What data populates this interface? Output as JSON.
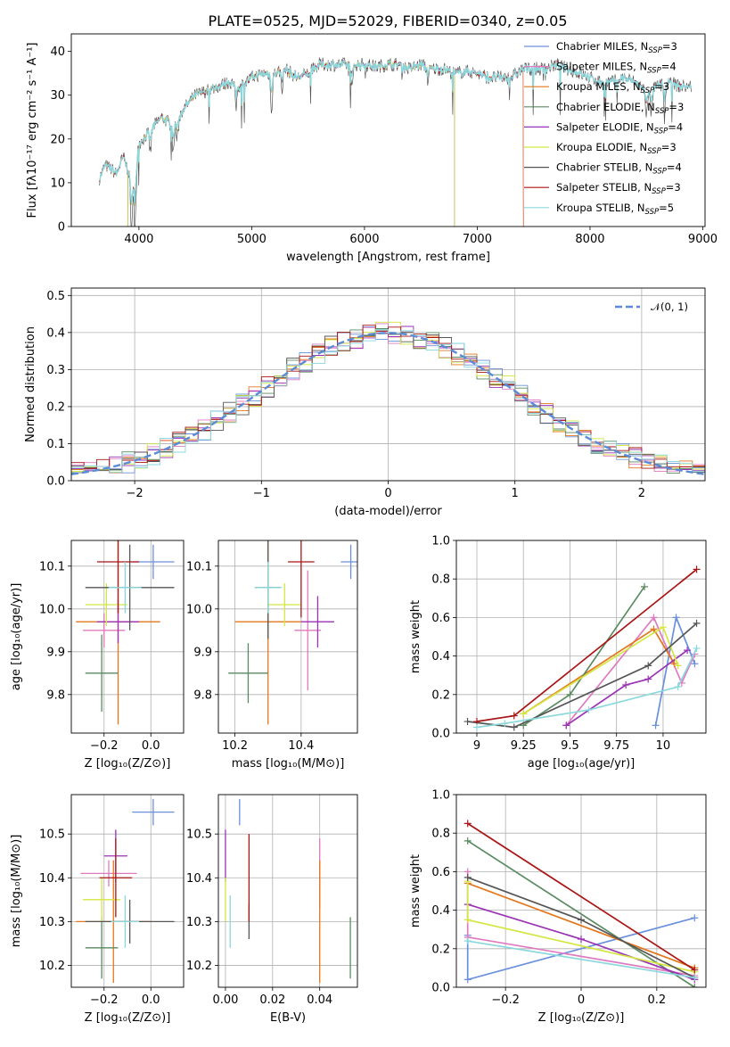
{
  "title": "PLATE=0525, MJD=52029, FIBERID=0340, z=0.05",
  "colors": {
    "Chabrier MILES": "#6a8fdc",
    "Salpeter MILES": "#e07ac0",
    "Kroupa MILES": "#e3771e",
    "Chabrier ELODIE": "#5a8a60",
    "Salpeter ELODIE": "#9a32b4",
    "Kroupa ELODIE": "#d4e640",
    "Chabrier STELIB": "#555555",
    "Salpeter STELIB": "#aa1515",
    "Kroupa STELIB": "#8ad8dc"
  },
  "legend": [
    {
      "name": "Chabrier MILES",
      "label": "Chabrier MILES, N",
      "sub": "SSP",
      "n": "=3"
    },
    {
      "name": "Salpeter MILES",
      "label": "Salpeter MILES, N",
      "sub": "SSP",
      "n": "=4"
    },
    {
      "name": "Kroupa MILES",
      "label": "Kroupa MILES, N",
      "sub": "SSP",
      "n": "=3"
    },
    {
      "name": "Chabrier ELODIE",
      "label": "Chabrier ELODIE, N",
      "sub": "SSP",
      "n": "=3"
    },
    {
      "name": "Salpeter ELODIE",
      "label": "Salpeter ELODIE, N",
      "sub": "SSP",
      "n": "=4"
    },
    {
      "name": "Kroupa ELODIE",
      "label": "Kroupa ELODIE, N",
      "sub": "SSP",
      "n": "=3"
    },
    {
      "name": "Chabrier STELIB",
      "label": "Chabrier STELIB, N",
      "sub": "SSP",
      "n": "=4"
    },
    {
      "name": "Salpeter STELIB",
      "label": "Salpeter STELIB, N",
      "sub": "SSP",
      "n": "=3"
    },
    {
      "name": "Kroupa STELIB",
      "label": "Kroupa STELIB, N",
      "sub": "SSP",
      "n": "=5"
    }
  ],
  "chart_data": [
    {
      "id": "spectrum",
      "type": "line",
      "xlabel": "wavelength [Angstrom, rest frame]",
      "ylabel": "Flux [fλ10⁻¹⁷ erg cm⁻² s⁻¹ A⁻¹]",
      "xlim": [
        3400,
        9020
      ],
      "ylim": [
        0,
        44
      ],
      "xticks": [
        4000,
        5000,
        6000,
        7000,
        8000,
        9000
      ],
      "yticks": [
        0,
        10,
        20,
        30,
        40
      ],
      "anchors": [
        [
          3650,
          11
        ],
        [
          3700,
          14
        ],
        [
          3760,
          13
        ],
        [
          3800,
          12
        ],
        [
          3860,
          16
        ],
        [
          3900,
          13
        ],
        [
          3950,
          10
        ],
        [
          4000,
          19
        ],
        [
          4100,
          22
        ],
        [
          4200,
          25
        ],
        [
          4300,
          23
        ],
        [
          4400,
          27
        ],
        [
          4500,
          30
        ],
        [
          4600,
          31
        ],
        [
          4700,
          32
        ],
        [
          4800,
          33
        ],
        [
          4900,
          32
        ],
        [
          5000,
          34
        ],
        [
          5100,
          35
        ],
        [
          5200,
          35
        ],
        [
          5300,
          36
        ],
        [
          5400,
          34
        ],
        [
          5500,
          35
        ],
        [
          5600,
          37
        ],
        [
          5700,
          37
        ],
        [
          5800,
          37
        ],
        [
          5900,
          37
        ],
        [
          6000,
          37
        ],
        [
          6100,
          36.5
        ],
        [
          6200,
          37
        ],
        [
          6300,
          37
        ],
        [
          6400,
          36
        ],
        [
          6500,
          37
        ],
        [
          6600,
          36
        ],
        [
          6700,
          36
        ],
        [
          6800,
          35
        ],
        [
          6900,
          35.5
        ],
        [
          7000,
          35
        ],
        [
          7100,
          34
        ],
        [
          7200,
          34
        ],
        [
          7300,
          34
        ],
        [
          7400,
          36
        ],
        [
          7500,
          36
        ],
        [
          7600,
          36
        ],
        [
          7700,
          37
        ],
        [
          7800,
          36
        ],
        [
          7900,
          35
        ],
        [
          8000,
          34
        ],
        [
          8100,
          33
        ],
        [
          8200,
          33
        ],
        [
          8300,
          34
        ],
        [
          8400,
          33
        ],
        [
          8500,
          31
        ],
        [
          8600,
          32
        ],
        [
          8700,
          33
        ],
        [
          8800,
          32
        ],
        [
          8900,
          32
        ]
      ]
    },
    {
      "id": "residuals",
      "type": "bar",
      "xlabel": "(data-model)/error",
      "ylabel": "Normed distribution",
      "xlim": [
        -2.5,
        2.5
      ],
      "ylim": [
        0,
        0.52
      ],
      "xticks": [
        -2,
        -1,
        0,
        1,
        2
      ],
      "yticks": [
        0.0,
        0.1,
        0.2,
        0.3,
        0.4,
        0.5
      ],
      "bin_width": 0.1,
      "legend_label": "𝒩(0, 1)",
      "grid": true
    },
    {
      "id": "age-vs-Z",
      "type": "scatter",
      "xlabel": "Z [log₁₀(Z/Z⊙)]",
      "ylabel": "age  [log₁₀(age/yr)]",
      "xlim": [
        -0.34,
        0.14
      ],
      "ylim": [
        9.71,
        10.16
      ],
      "xticks": [
        -0.2,
        0.0
      ],
      "yticks": [
        9.8,
        9.9,
        10.0,
        10.1
      ],
      "points": [
        {
          "name": "Chabrier MILES",
          "x": 0.01,
          "xerr": 0.09,
          "y": 10.11,
          "yerr": 0.04
        },
        {
          "name": "Salpeter MILES",
          "x": -0.2,
          "xerr": 0.09,
          "y": 9.95,
          "yerr": 0.04
        },
        {
          "name": "Kroupa MILES",
          "x": -0.14,
          "xerr": 0.18,
          "y": 9.97,
          "yerr": 0.24
        },
        {
          "name": "Chabrier ELODIE",
          "x": -0.21,
          "xerr": 0.07,
          "y": 9.85,
          "yerr": 0.09
        },
        {
          "name": "Salpeter ELODIE",
          "x": -0.14,
          "xerr": 0.09,
          "y": 9.97,
          "yerr": 0.05
        },
        {
          "name": "Kroupa ELODIE",
          "x": -0.19,
          "xerr": 0.09,
          "y": 10.01,
          "yerr": 0.05
        },
        {
          "name": "Chabrier STELIB",
          "x": -0.09,
          "xerr": 0.19,
          "y": 10.05,
          "yerr": 0.1
        },
        {
          "name": "Salpeter STELIB",
          "x": -0.14,
          "xerr": 0.09,
          "y": 10.11,
          "yerr": 0.12
        },
        {
          "name": "Kroupa STELIB",
          "x": -0.11,
          "xerr": 0.07,
          "y": 10.05,
          "yerr": 0.06
        }
      ]
    },
    {
      "id": "age-vs-mass",
      "type": "scatter",
      "xlabel": "mass [log₁₀(M/M⊙)]",
      "ylabel": "",
      "xlim": [
        10.15,
        10.57
      ],
      "ylim": [
        9.71,
        10.16
      ],
      "xticks": [
        10.2,
        10.4
      ],
      "yticks": [
        9.8,
        9.9,
        10.0,
        10.1
      ],
      "points": [
        {
          "name": "Chabrier MILES",
          "x": 10.55,
          "xerr": 0.03,
          "y": 10.11,
          "yerr": 0.04
        },
        {
          "name": "Salpeter MILES",
          "x": 10.42,
          "xerr": 0.04,
          "y": 9.95,
          "yerr": 0.14
        },
        {
          "name": "Kroupa MILES",
          "x": 10.3,
          "xerr": 0.1,
          "y": 9.97,
          "yerr": 0.24
        },
        {
          "name": "Chabrier ELODIE",
          "x": 10.24,
          "xerr": 0.06,
          "y": 9.85,
          "yerr": 0.07
        },
        {
          "name": "Salpeter ELODIE",
          "x": 10.45,
          "xerr": 0.05,
          "y": 9.97,
          "yerr": 0.06
        },
        {
          "name": "Kroupa ELODIE",
          "x": 10.35,
          "xerr": 0.05,
          "y": 10.01,
          "yerr": 0.05
        },
        {
          "name": "Chabrier STELIB",
          "x": 10.3,
          "xerr": 0.04,
          "y": 10.05,
          "yerr": 0.12
        },
        {
          "name": "Salpeter STELIB",
          "x": 10.4,
          "xerr": 0.04,
          "y": 10.11,
          "yerr": 0.13
        },
        {
          "name": "Kroupa STELIB",
          "x": 10.3,
          "xerr": 0.04,
          "y": 10.05,
          "yerr": 0.06
        }
      ]
    },
    {
      "id": "mass-weight-vs-age",
      "type": "line",
      "xlabel": "age  [log₁₀(age/yr)]",
      "ylabel": "mass weight",
      "xlim": [
        8.89,
        10.23
      ],
      "ylim": [
        0,
        1.0
      ],
      "xticks": [
        9.0,
        9.25,
        9.5,
        9.75,
        10.0
      ],
      "yticks": [
        0.0,
        0.2,
        0.4,
        0.6,
        0.8,
        1.0
      ],
      "series": [
        {
          "name": "Chabrier MILES",
          "points": [
            [
              9.96,
              0.04
            ],
            [
              10.07,
              0.6
            ],
            [
              10.17,
              0.36
            ]
          ]
        },
        {
          "name": "Salpeter MILES",
          "points": [
            [
              9.48,
              0.04
            ],
            [
              9.95,
              0.6
            ],
            [
              10.1,
              0.26
            ],
            [
              10.17,
              0.41
            ]
          ]
        },
        {
          "name": "Kroupa MILES",
          "points": [
            [
              9.25,
              0.1
            ],
            [
              9.95,
              0.54
            ],
            [
              10.06,
              0.36
            ]
          ]
        },
        {
          "name": "Chabrier ELODIE",
          "points": [
            [
              9.25,
              0.04
            ],
            [
              9.5,
              0.2
            ],
            [
              9.9,
              0.76
            ]
          ]
        },
        {
          "name": "Salpeter ELODIE",
          "points": [
            [
              9.48,
              0.04
            ],
            [
              9.8,
              0.25
            ],
            [
              9.92,
              0.28
            ],
            [
              10.13,
              0.43
            ]
          ]
        },
        {
          "name": "Kroupa ELODIE",
          "points": [
            [
              9.25,
              0.1
            ],
            [
              10.0,
              0.55
            ],
            [
              10.08,
              0.35
            ]
          ]
        },
        {
          "name": "Chabrier STELIB",
          "points": [
            [
              8.95,
              0.06
            ],
            [
              9.2,
              0.03
            ],
            [
              9.92,
              0.35
            ],
            [
              10.18,
              0.57
            ]
          ]
        },
        {
          "name": "Salpeter STELIB",
          "points": [
            [
              9.0,
              0.06
            ],
            [
              9.2,
              0.09
            ],
            [
              10.18,
              0.85
            ]
          ]
        },
        {
          "name": "Kroupa STELIB",
          "points": [
            [
              9.0,
              0.03
            ],
            [
              9.15,
              0.05
            ],
            [
              9.6,
              0.12
            ],
            [
              10.08,
              0.24
            ],
            [
              10.18,
              0.44
            ]
          ]
        }
      ]
    },
    {
      "id": "mass-vs-Z",
      "type": "scatter",
      "xlabel": "Z [log₁₀(Z/Z⊙)]",
      "ylabel": "mass [log₁₀(M/M⊙)]",
      "xlim": [
        -0.34,
        0.14
      ],
      "ylim": [
        10.15,
        10.59
      ],
      "xticks": [
        -0.2,
        0.0
      ],
      "yticks": [
        10.2,
        10.3,
        10.4,
        10.5
      ],
      "points": [
        {
          "name": "Chabrier MILES",
          "x": 0.01,
          "xerr": 0.09,
          "y": 10.55,
          "yerr": 0.03
        },
        {
          "name": "Salpeter MILES",
          "x": -0.18,
          "xerr": 0.12,
          "y": 10.41,
          "yerr": 0.03
        },
        {
          "name": "Kroupa MILES",
          "x": -0.16,
          "xerr": 0.16,
          "y": 10.3,
          "yerr": 0.14
        },
        {
          "name": "Chabrier ELODIE",
          "x": -0.21,
          "xerr": 0.07,
          "y": 10.24,
          "yerr": 0.07
        },
        {
          "name": "Salpeter ELODIE",
          "x": -0.15,
          "xerr": 0.05,
          "y": 10.45,
          "yerr": 0.06
        },
        {
          "name": "Kroupa ELODIE",
          "x": -0.21,
          "xerr": 0.08,
          "y": 10.35,
          "yerr": 0.05
        },
        {
          "name": "Chabrier STELIB",
          "x": -0.09,
          "xerr": 0.19,
          "y": 10.3,
          "yerr": 0.05
        },
        {
          "name": "Salpeter STELIB",
          "x": -0.15,
          "xerr": 0.07,
          "y": 10.4,
          "yerr": 0.09
        },
        {
          "name": "Kroupa STELIB",
          "x": -0.11,
          "xerr": 0.06,
          "y": 10.3,
          "yerr": 0.06
        }
      ]
    },
    {
      "id": "mass-vs-EBV",
      "type": "scatter",
      "xlabel": "E(B-V)",
      "ylabel": "",
      "xlim": [
        -0.003,
        0.056
      ],
      "ylim": [
        10.15,
        10.59
      ],
      "xticks": [
        0.0,
        0.02,
        0.04
      ],
      "yticks": [
        10.2,
        10.3,
        10.4,
        10.5
      ],
      "points": [
        {
          "name": "Chabrier MILES",
          "x": 0.006,
          "xerr": 0.0,
          "y": 10.55,
          "yerr": 0.03
        },
        {
          "name": "Salpeter MILES",
          "x": 0.04,
          "xerr": 0.0,
          "y": 10.41,
          "yerr": 0.08
        },
        {
          "name": "Kroupa MILES",
          "x": 0.04,
          "xerr": 0.0,
          "y": 10.3,
          "yerr": 0.14
        },
        {
          "name": "Chabrier ELODIE",
          "x": 0.053,
          "xerr": 0.0,
          "y": 10.24,
          "yerr": 0.07
        },
        {
          "name": "Salpeter ELODIE",
          "x": 0.0,
          "xerr": 0.0,
          "y": 10.45,
          "yerr": 0.06
        },
        {
          "name": "Kroupa ELODIE",
          "x": 0.0,
          "xerr": 0.0,
          "y": 10.35,
          "yerr": 0.05
        },
        {
          "name": "Chabrier STELIB",
          "x": 0.01,
          "xerr": 0.0,
          "y": 10.3,
          "yerr": 0.04
        },
        {
          "name": "Salpeter STELIB",
          "x": 0.01,
          "xerr": 0.0,
          "y": 10.4,
          "yerr": 0.1
        },
        {
          "name": "Kroupa STELIB",
          "x": 0.002,
          "xerr": 0.0,
          "y": 10.3,
          "yerr": 0.06
        }
      ]
    },
    {
      "id": "mass-weight-vs-Z",
      "type": "line",
      "xlabel": "Z [log₁₀(Z/Z⊙)]",
      "ylabel": "mass weight",
      "xlim": [
        -0.33,
        0.33
      ],
      "ylim": [
        0,
        1.0
      ],
      "xticks": [
        -0.2,
        0.0,
        0.2
      ],
      "yticks": [
        0.0,
        0.2,
        0.4,
        0.6,
        0.8,
        1.0
      ],
      "series": [
        {
          "name": "Chabrier MILES",
          "points": [
            [
              -0.3,
              0.27
            ],
            [
              -0.3,
              0.04
            ],
            [
              0.3,
              0.36
            ]
          ]
        },
        {
          "name": "Salpeter MILES",
          "points": [
            [
              -0.3,
              0.6
            ],
            [
              -0.3,
              0.26
            ],
            [
              0.3,
              0.06
            ]
          ]
        },
        {
          "name": "Kroupa MILES",
          "points": [
            [
              -0.3,
              0.54
            ],
            [
              0.3,
              0.1
            ]
          ]
        },
        {
          "name": "Chabrier ELODIE",
          "points": [
            [
              -0.3,
              0.76
            ],
            [
              0.3,
              0.0
            ]
          ]
        },
        {
          "name": "Salpeter ELODIE",
          "points": [
            [
              -0.3,
              0.43
            ],
            [
              0.0,
              0.25
            ],
            [
              0.3,
              0.04
            ]
          ]
        },
        {
          "name": "Kroupa ELODIE",
          "points": [
            [
              -0.3,
              0.55
            ],
            [
              -0.3,
              0.35
            ],
            [
              0.3,
              0.08
            ]
          ]
        },
        {
          "name": "Chabrier STELIB",
          "points": [
            [
              -0.3,
              0.57
            ],
            [
              0.0,
              0.35
            ],
            [
              0.3,
              0.05
            ]
          ]
        },
        {
          "name": "Salpeter STELIB",
          "points": [
            [
              -0.3,
              0.85
            ],
            [
              0.3,
              0.09
            ]
          ]
        },
        {
          "name": "Kroupa STELIB",
          "points": [
            [
              -0.3,
              0.24
            ],
            [
              0.3,
              0.05
            ]
          ]
        }
      ]
    }
  ]
}
